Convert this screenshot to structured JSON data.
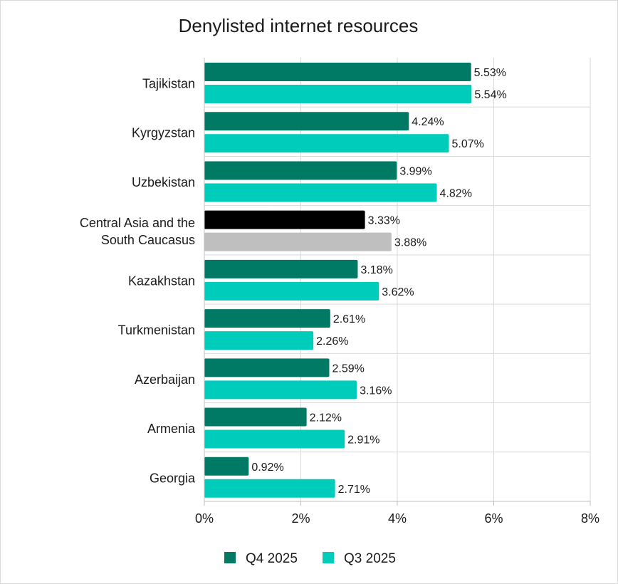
{
  "chart_data": {
    "type": "bar",
    "orientation": "horizontal",
    "title": "Denylisted internet resources",
    "categories": [
      "Tajikistan",
      "Kyrgyzstan",
      "Uzbekistan",
      "Central Asia and the South Caucasus",
      "Kazakhstan",
      "Turkmenistan",
      "Azerbaijan",
      "Armenia",
      "Georgia"
    ],
    "category_lines": [
      [
        "Tajikistan"
      ],
      [
        "Kyrgyzstan"
      ],
      [
        "Uzbekistan"
      ],
      [
        "Central Asia and the",
        "South Caucasus"
      ],
      [
        "Kazakhstan"
      ],
      [
        "Turkmenistan"
      ],
      [
        "Azerbaijan"
      ],
      [
        "Armenia"
      ],
      [
        "Georgia"
      ]
    ],
    "series": [
      {
        "name": "Q4 2025",
        "color": "#007a64",
        "values": [
          5.53,
          4.24,
          3.99,
          3.33,
          3.18,
          2.61,
          2.59,
          2.12,
          0.92
        ],
        "labels": [
          "5.53%",
          "4.24%",
          "3.99%",
          "3.33%",
          "3.18%",
          "2.61%",
          "2.59%",
          "2.12%",
          "0.92%"
        ]
      },
      {
        "name": "Q3 2025",
        "color": "#00ccbb",
        "values": [
          5.54,
          5.07,
          4.82,
          3.88,
          3.62,
          2.26,
          3.16,
          2.91,
          2.71
        ],
        "labels": [
          "5.54%",
          "5.07%",
          "4.82%",
          "3.88%",
          "3.62%",
          "2.26%",
          "3.16%",
          "2.91%",
          "2.71%"
        ]
      }
    ],
    "highlight": {
      "category_index": 3,
      "colors": [
        "#000000",
        "#bfbfbf"
      ]
    },
    "xlim": [
      0,
      8
    ],
    "xticks": [
      0,
      2,
      4,
      6,
      8
    ],
    "xtick_labels": [
      "0%",
      "2%",
      "4%",
      "6%",
      "8%"
    ],
    "grid": "vertical",
    "legend_position": "bottom-center",
    "xlabel": "",
    "ylabel": ""
  }
}
